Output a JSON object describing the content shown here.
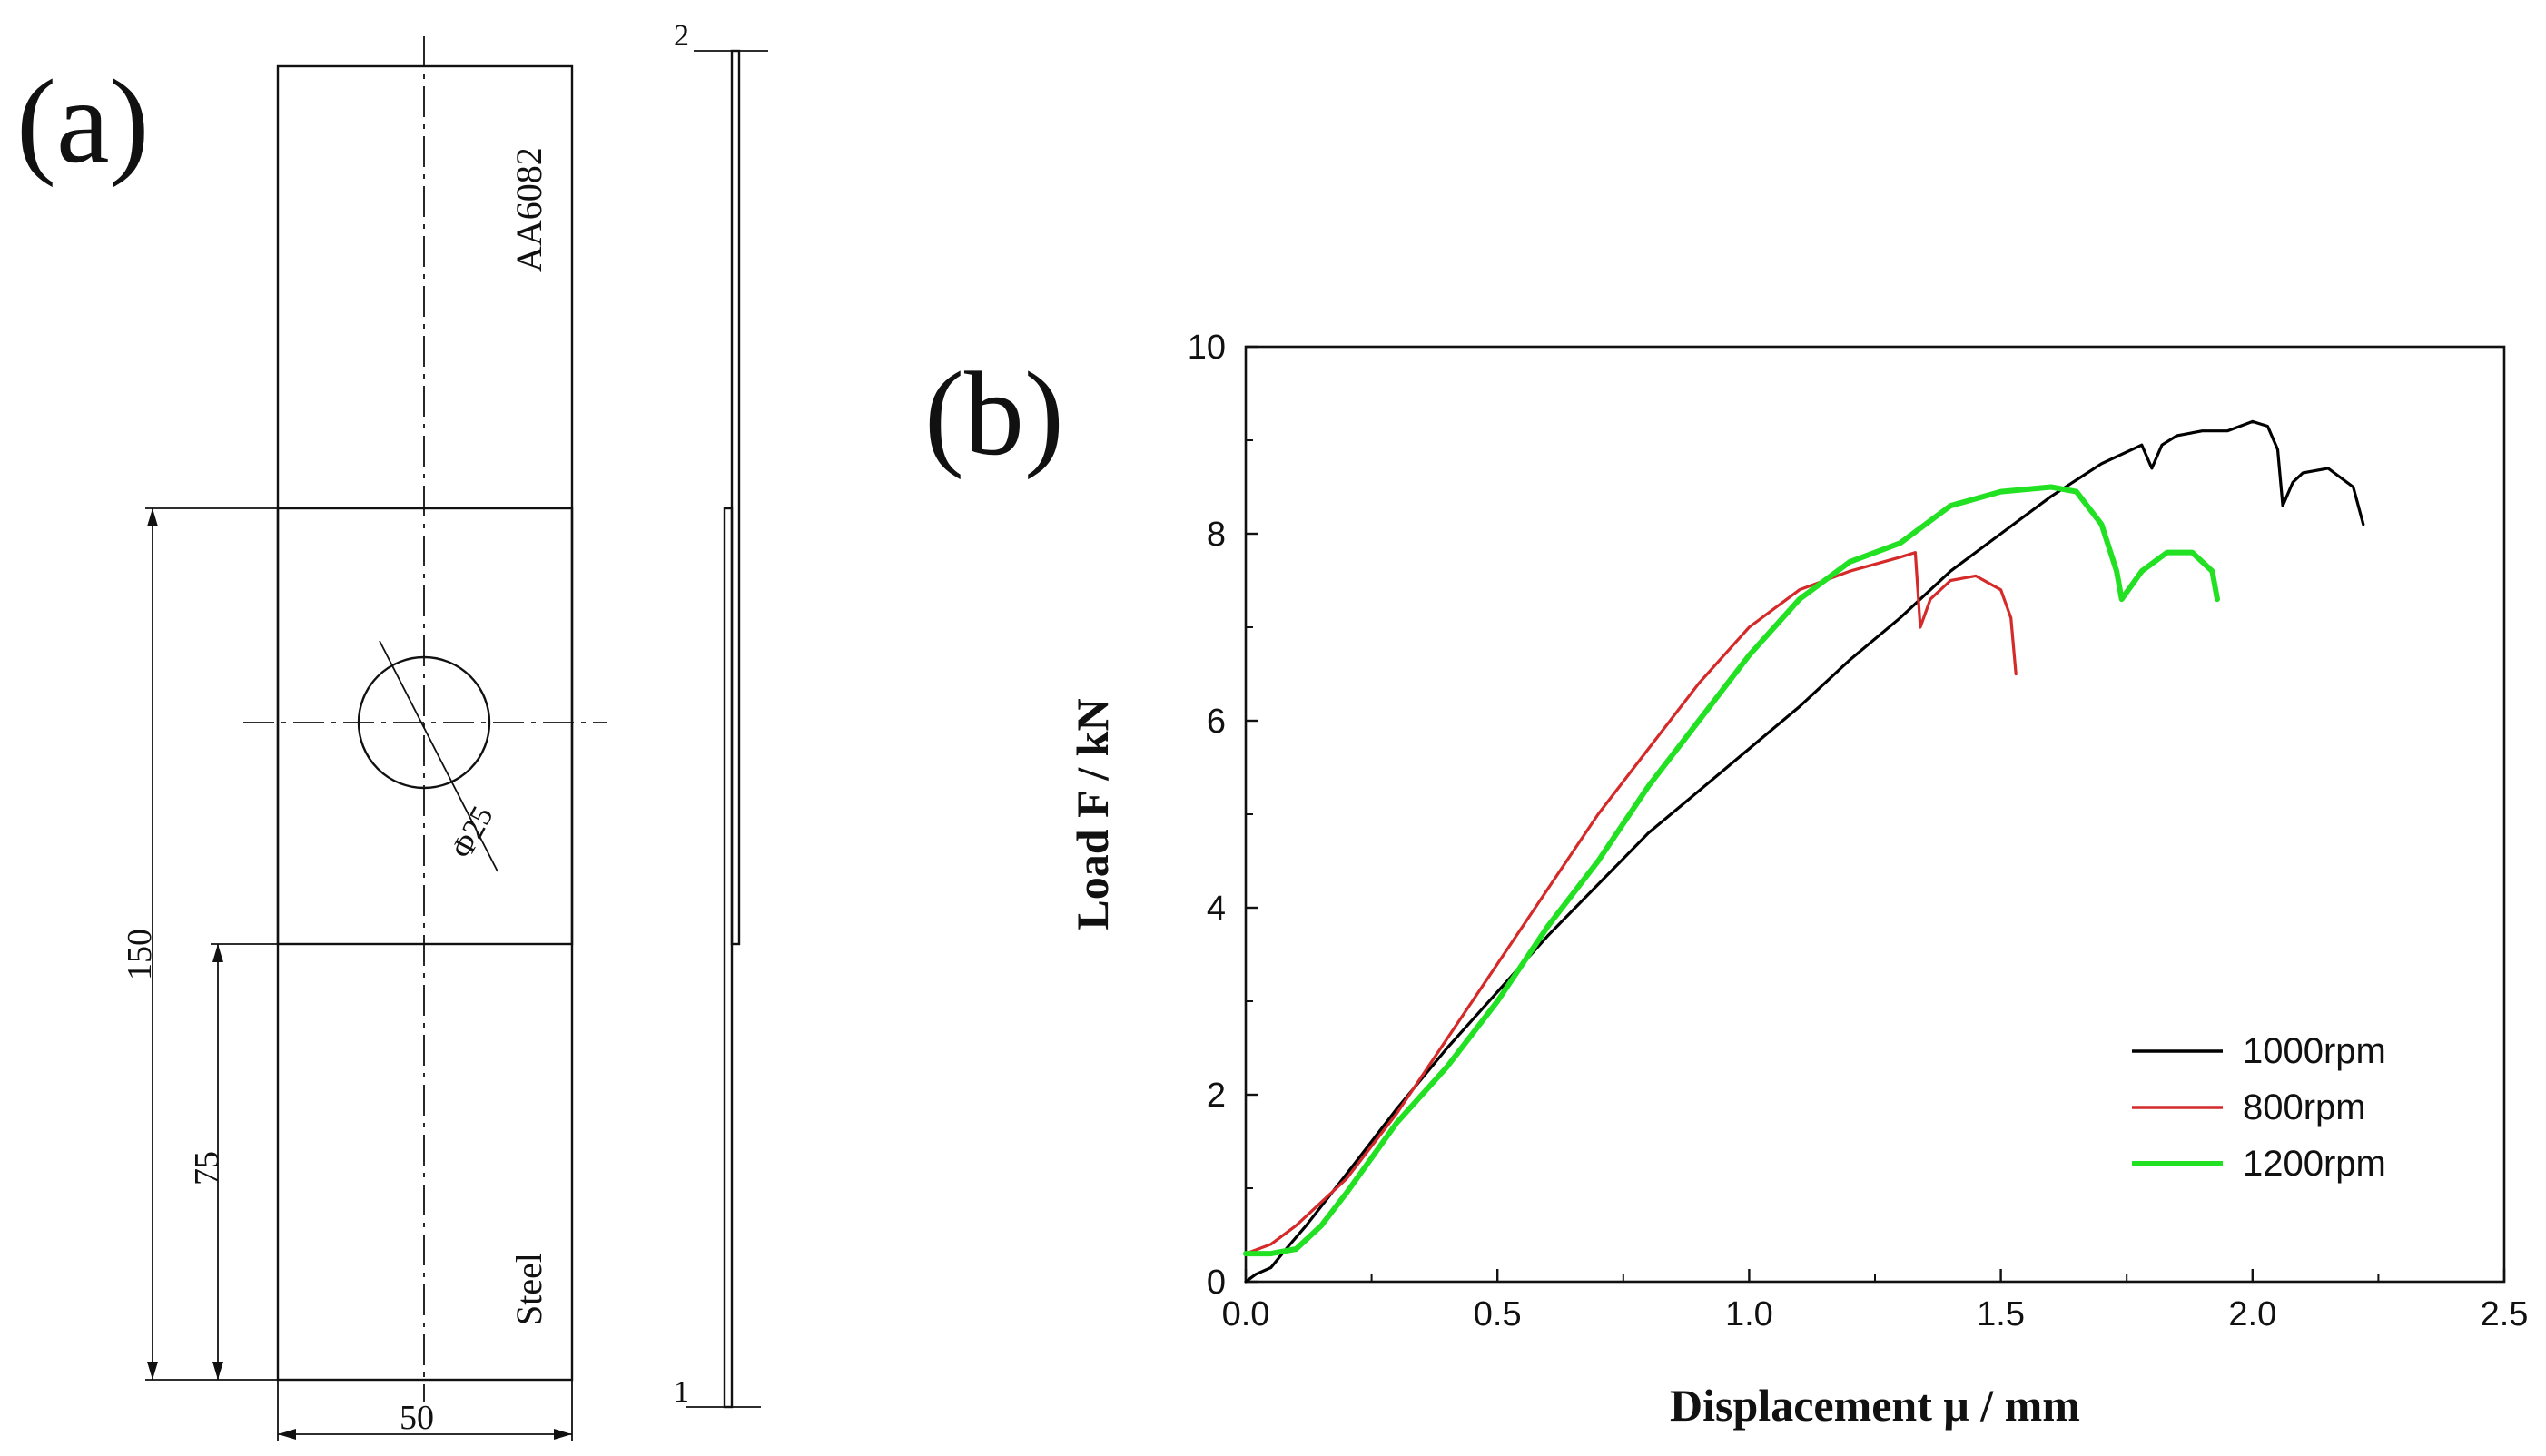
{
  "panel_a": {
    "label": "(a)",
    "upper_material": "AA6082",
    "lower_material": "Steel",
    "hole_diameter": "Φ25",
    "dim_overlap": "150",
    "dim_half": "75",
    "dim_width": "50",
    "side_top": "2",
    "side_bottom": "1"
  },
  "panel_b": {
    "label": "(b)"
  },
  "chart_data": {
    "type": "line",
    "title": "",
    "xlabel": "Displacement μ / mm",
    "ylabel": "Load F / kN",
    "xlim": [
      0,
      2.5
    ],
    "ylim": [
      0,
      10
    ],
    "xticks": [
      "0.0",
      "0.5",
      "1.0",
      "1.5",
      "2.0",
      "2.5"
    ],
    "yticks": [
      "0",
      "2",
      "4",
      "6",
      "8",
      "10"
    ],
    "grid": false,
    "legend_position": "bottom-right",
    "series": [
      {
        "name": "1000rpm",
        "color": "#000000",
        "x": [
          0.0,
          0.02,
          0.05,
          0.08,
          0.12,
          0.2,
          0.3,
          0.4,
          0.5,
          0.6,
          0.7,
          0.8,
          0.9,
          1.0,
          1.1,
          1.2,
          1.3,
          1.4,
          1.5,
          1.6,
          1.7,
          1.78,
          1.8,
          1.82,
          1.85,
          1.9,
          1.95,
          2.0,
          2.03,
          2.05,
          2.06,
          2.08,
          2.1,
          2.15,
          2.2,
          2.22
        ],
        "y": [
          0.0,
          0.08,
          0.15,
          0.35,
          0.6,
          1.15,
          1.85,
          2.5,
          3.1,
          3.7,
          4.25,
          4.8,
          5.25,
          5.7,
          6.15,
          6.65,
          7.1,
          7.6,
          8.0,
          8.4,
          8.75,
          8.95,
          8.7,
          8.95,
          9.05,
          9.1,
          9.1,
          9.2,
          9.15,
          8.9,
          8.3,
          8.55,
          8.65,
          8.7,
          8.5,
          8.1
        ]
      },
      {
        "name": "800rpm",
        "color": "#d42a2a",
        "x": [
          0.0,
          0.05,
          0.1,
          0.2,
          0.3,
          0.4,
          0.5,
          0.6,
          0.7,
          0.8,
          0.9,
          1.0,
          1.1,
          1.2,
          1.3,
          1.33,
          1.34,
          1.36,
          1.4,
          1.45,
          1.5,
          1.52,
          1.53
        ],
        "y": [
          0.3,
          0.4,
          0.6,
          1.1,
          1.8,
          2.6,
          3.4,
          4.2,
          5.0,
          5.7,
          6.4,
          7.0,
          7.4,
          7.6,
          7.75,
          7.8,
          7.0,
          7.3,
          7.5,
          7.55,
          7.4,
          7.1,
          6.5
        ]
      },
      {
        "name": "1200rpm",
        "color": "#22e022",
        "x": [
          0.0,
          0.05,
          0.1,
          0.15,
          0.2,
          0.3,
          0.4,
          0.5,
          0.6,
          0.7,
          0.8,
          0.9,
          1.0,
          1.1,
          1.2,
          1.3,
          1.4,
          1.5,
          1.6,
          1.65,
          1.7,
          1.73,
          1.74,
          1.78,
          1.83,
          1.88,
          1.92,
          1.93
        ],
        "y": [
          0.3,
          0.3,
          0.35,
          0.6,
          0.95,
          1.7,
          2.3,
          3.0,
          3.8,
          4.5,
          5.3,
          6.0,
          6.7,
          7.3,
          7.7,
          7.9,
          8.3,
          8.45,
          8.5,
          8.45,
          8.1,
          7.6,
          7.3,
          7.6,
          7.8,
          7.8,
          7.6,
          7.3
        ]
      }
    ]
  }
}
